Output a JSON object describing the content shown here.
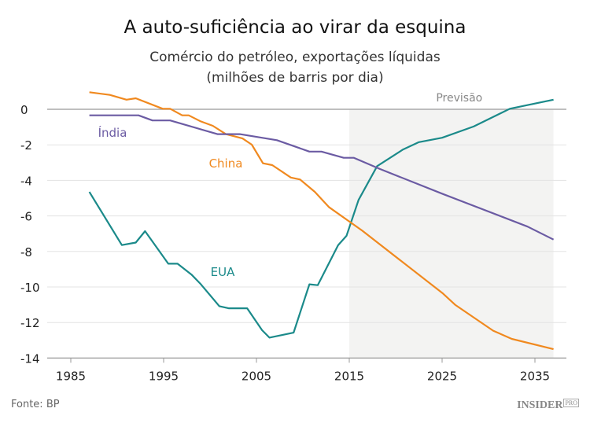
{
  "chart_data": {
    "type": "line",
    "title": "A auto-suficiência ao virar da esquina",
    "subtitle": [
      "Comércio do petróleo, exportações líquidas",
      "(milhões de barris por dia)"
    ],
    "xlabel": "",
    "ylabel": "",
    "xlim": [
      1982,
      2039
    ],
    "ylim": [
      -14,
      0.5
    ],
    "x_ticks": [
      1985,
      1995,
      2005,
      2015,
      2025,
      2035
    ],
    "y_ticks": [
      0,
      -2,
      -4,
      -6,
      -8,
      -10,
      -12,
      -14
    ],
    "grid": "horizontal",
    "forecast": {
      "label": "Previsão",
      "from": 2015,
      "to": 2037,
      "color": "#f3f3f2"
    },
    "series": [
      {
        "name": "EUA",
        "color": "#1b8a8a",
        "x": [
          1987,
          1990.5,
          1992,
          1993,
          1995.5,
          1996.5,
          1998,
          1999,
          2001,
          2002,
          2004,
          2005.6,
          2006.4,
          2009,
          2010.7,
          2011.6,
          2013.8,
          2014.7,
          2016,
          2018,
          2020.8,
          2022.5,
          2025,
          2028.4,
          2032.3,
          2037
        ],
        "y": [
          -4.65,
          -7.64,
          -7.5,
          -6.86,
          -8.69,
          -8.69,
          -9.3,
          -9.84,
          -11.08,
          -11.2,
          -11.2,
          -12.43,
          -12.85,
          -12.57,
          -9.85,
          -9.9,
          -7.65,
          -7.12,
          -5.1,
          -3.2,
          -2.26,
          -1.85,
          -1.6,
          -0.97,
          0.03,
          0.54
        ]
      },
      {
        "name": "China",
        "color": "#f0891f",
        "x": [
          1987,
          1989.2,
          1991,
          1992,
          1994.9,
          1995.7,
          1997,
          1997.7,
          1999,
          2000.3,
          2001.7,
          2003.5,
          2004.5,
          2005.7,
          2006.7,
          2008.7,
          2009.7,
          2011.3,
          2012.8,
          2016.4,
          2025.1,
          2026.4,
          2030.5,
          2032.5,
          2037
        ],
        "y": [
          0.96,
          0.81,
          0.54,
          0.62,
          0.03,
          0.03,
          -0.34,
          -0.34,
          -0.68,
          -0.93,
          -1.4,
          -1.64,
          -1.99,
          -3.04,
          -3.14,
          -3.84,
          -3.95,
          -4.65,
          -5.5,
          -6.83,
          -10.37,
          -11.0,
          -12.46,
          -12.92,
          -13.5
        ]
      },
      {
        "name": "Índia",
        "color": "#6b5ba3",
        "x": [
          1987,
          1992.3,
          1993.8,
          1995.7,
          2000.8,
          2003.2,
          2007.2,
          2010.7,
          2012,
          2014.4,
          2015.5,
          2018.3,
          2025.1,
          2034.2,
          2037
        ],
        "y": [
          -0.34,
          -0.34,
          -0.63,
          -0.63,
          -1.4,
          -1.4,
          -1.74,
          -2.38,
          -2.38,
          -2.73,
          -2.73,
          -3.36,
          -4.77,
          -6.6,
          -7.33
        ]
      }
    ]
  },
  "footer": {
    "source": "Fonte: BP",
    "logo": "INSIDER",
    "logo_suffix": "PRO"
  }
}
